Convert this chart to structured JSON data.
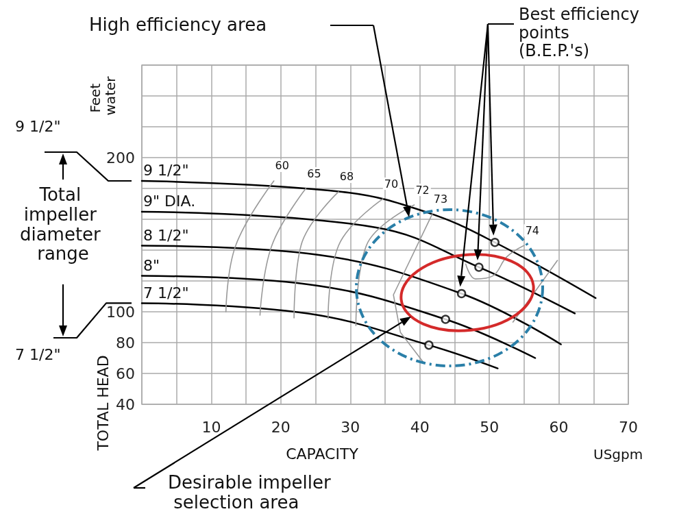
{
  "chart_data": {
    "type": "line",
    "xlabel": "CAPACITY",
    "ylabel": "TOTAL HEAD",
    "xlim": [
      0,
      70
    ],
    "ylim": [
      40,
      260
    ],
    "xticks": [
      {
        "value": 0,
        "label": null
      },
      {
        "value": 5,
        "label": null
      },
      10,
      {
        "value": 15,
        "label": null
      },
      20,
      {
        "value": 25,
        "label": null
      },
      30,
      {
        "value": 35,
        "label": null
      },
      40,
      {
        "value": 45,
        "label": null
      },
      50,
      {
        "value": 55,
        "label": null
      },
      60,
      {
        "value": 65,
        "label": null
      },
      70
    ],
    "yticks": [
      40,
      60,
      80,
      100,
      {
        "value": 120,
        "label": null
      },
      {
        "value": 140,
        "label": null
      },
      {
        "value": 160,
        "label": null
      },
      {
        "value": 180,
        "label": null
      },
      200,
      {
        "value": 220,
        "label": null
      },
      {
        "value": 240,
        "label": null
      },
      {
        "value": 260,
        "label": null
      }
    ],
    "grid": true,
    "legend": false,
    "marker": "none",
    "series": [
      {
        "name": "9 1/2\"",
        "color": "#000000",
        "x": [
          0,
          28.8,
          41.1,
          50.8,
          65.3
        ],
        "values": [
          184.9,
          177.8,
          164.4,
          145,
          108.9
        ]
      },
      {
        "name": "9\" DIA.",
        "color": "#000000",
        "x": [
          0,
          33.7,
          48.5,
          62.3
        ],
        "values": [
          164.9,
          154.7,
          128.9,
          98.9
        ]
      },
      {
        "name": "8 1/2\"",
        "color": "#000000",
        "x": [
          0,
          23.9,
          46,
          60.3
        ],
        "values": [
          142.9,
          137.8,
          111.8,
          78.9
        ]
      },
      {
        "name": "8\"",
        "color": "#000000",
        "x": [
          0,
          23.9,
          43.7,
          56.6
        ],
        "values": [
          123.3,
          117.8,
          95.1,
          70
        ]
      },
      {
        "name": "7 1/2\"",
        "color": "#000000",
        "x": [
          0,
          23.9,
          41.3,
          51.2
        ],
        "values": [
          105.6,
          98.9,
          78.4,
          63.3
        ]
      },
      {
        "name": "60",
        "color": "#999999",
        "x": [
          19,
          13.5,
          12.1
        ],
        "values": [
          184.9,
          142.9,
          100
        ]
      },
      {
        "name": "65",
        "color": "#999999",
        "x": [
          23.6,
          18.7,
          17
        ],
        "values": [
          180,
          142.9,
          97.8
        ]
      },
      {
        "name": "68",
        "color": "#999999",
        "x": [
          28.3,
          22.9,
          21.9
        ],
        "values": [
          177.8,
          142.9,
          96
        ]
      },
      {
        "name": "70",
        "color": "#999999",
        "x": [
          34.7,
          28.3,
          26.8
        ],
        "values": [
          173.3,
          142.9,
          95.6
        ]
      },
      {
        "name": "72",
        "color": "#999999",
        "x": [
          39.2,
          32.3,
          30.8
        ],
        "values": [
          169.3,
          142.9,
          91
        ]
      },
      {
        "name": "73",
        "color": "#999999",
        "x": [
          41.8,
          36.2,
          37.2,
          40.6
        ],
        "values": [
          163.5,
          111,
          86.7,
          66.7
        ]
      },
      {
        "name": "74",
        "color": "#999999",
        "x": [
          55,
          52.5,
          50.5,
          48,
          46.6
        ],
        "values": [
          143,
          135.6,
          123.3,
          121.3,
          131
        ]
      },
      {
        "color": "#999999",
        "x": [
          59.8,
          53.4
        ],
        "values": [
          133.3,
          93.3
        ]
      },
      {
        "type": "scatter",
        "marker": "circle",
        "color": "#000000",
        "x": [
          50.8,
          48.5,
          46,
          43.7,
          41.3
        ],
        "values": [
          145,
          128.9,
          111.8,
          95.1,
          78.4
        ]
      }
    ],
    "annotations": [
      "Feet water",
      "USgpm",
      "High efficiency area",
      "Best efficiency points (B.E.P.'s)",
      "Desirable impeller selection area",
      "Total impeller diameter range",
      "9 1/2\"",
      "7 1/2\""
    ]
  }
}
